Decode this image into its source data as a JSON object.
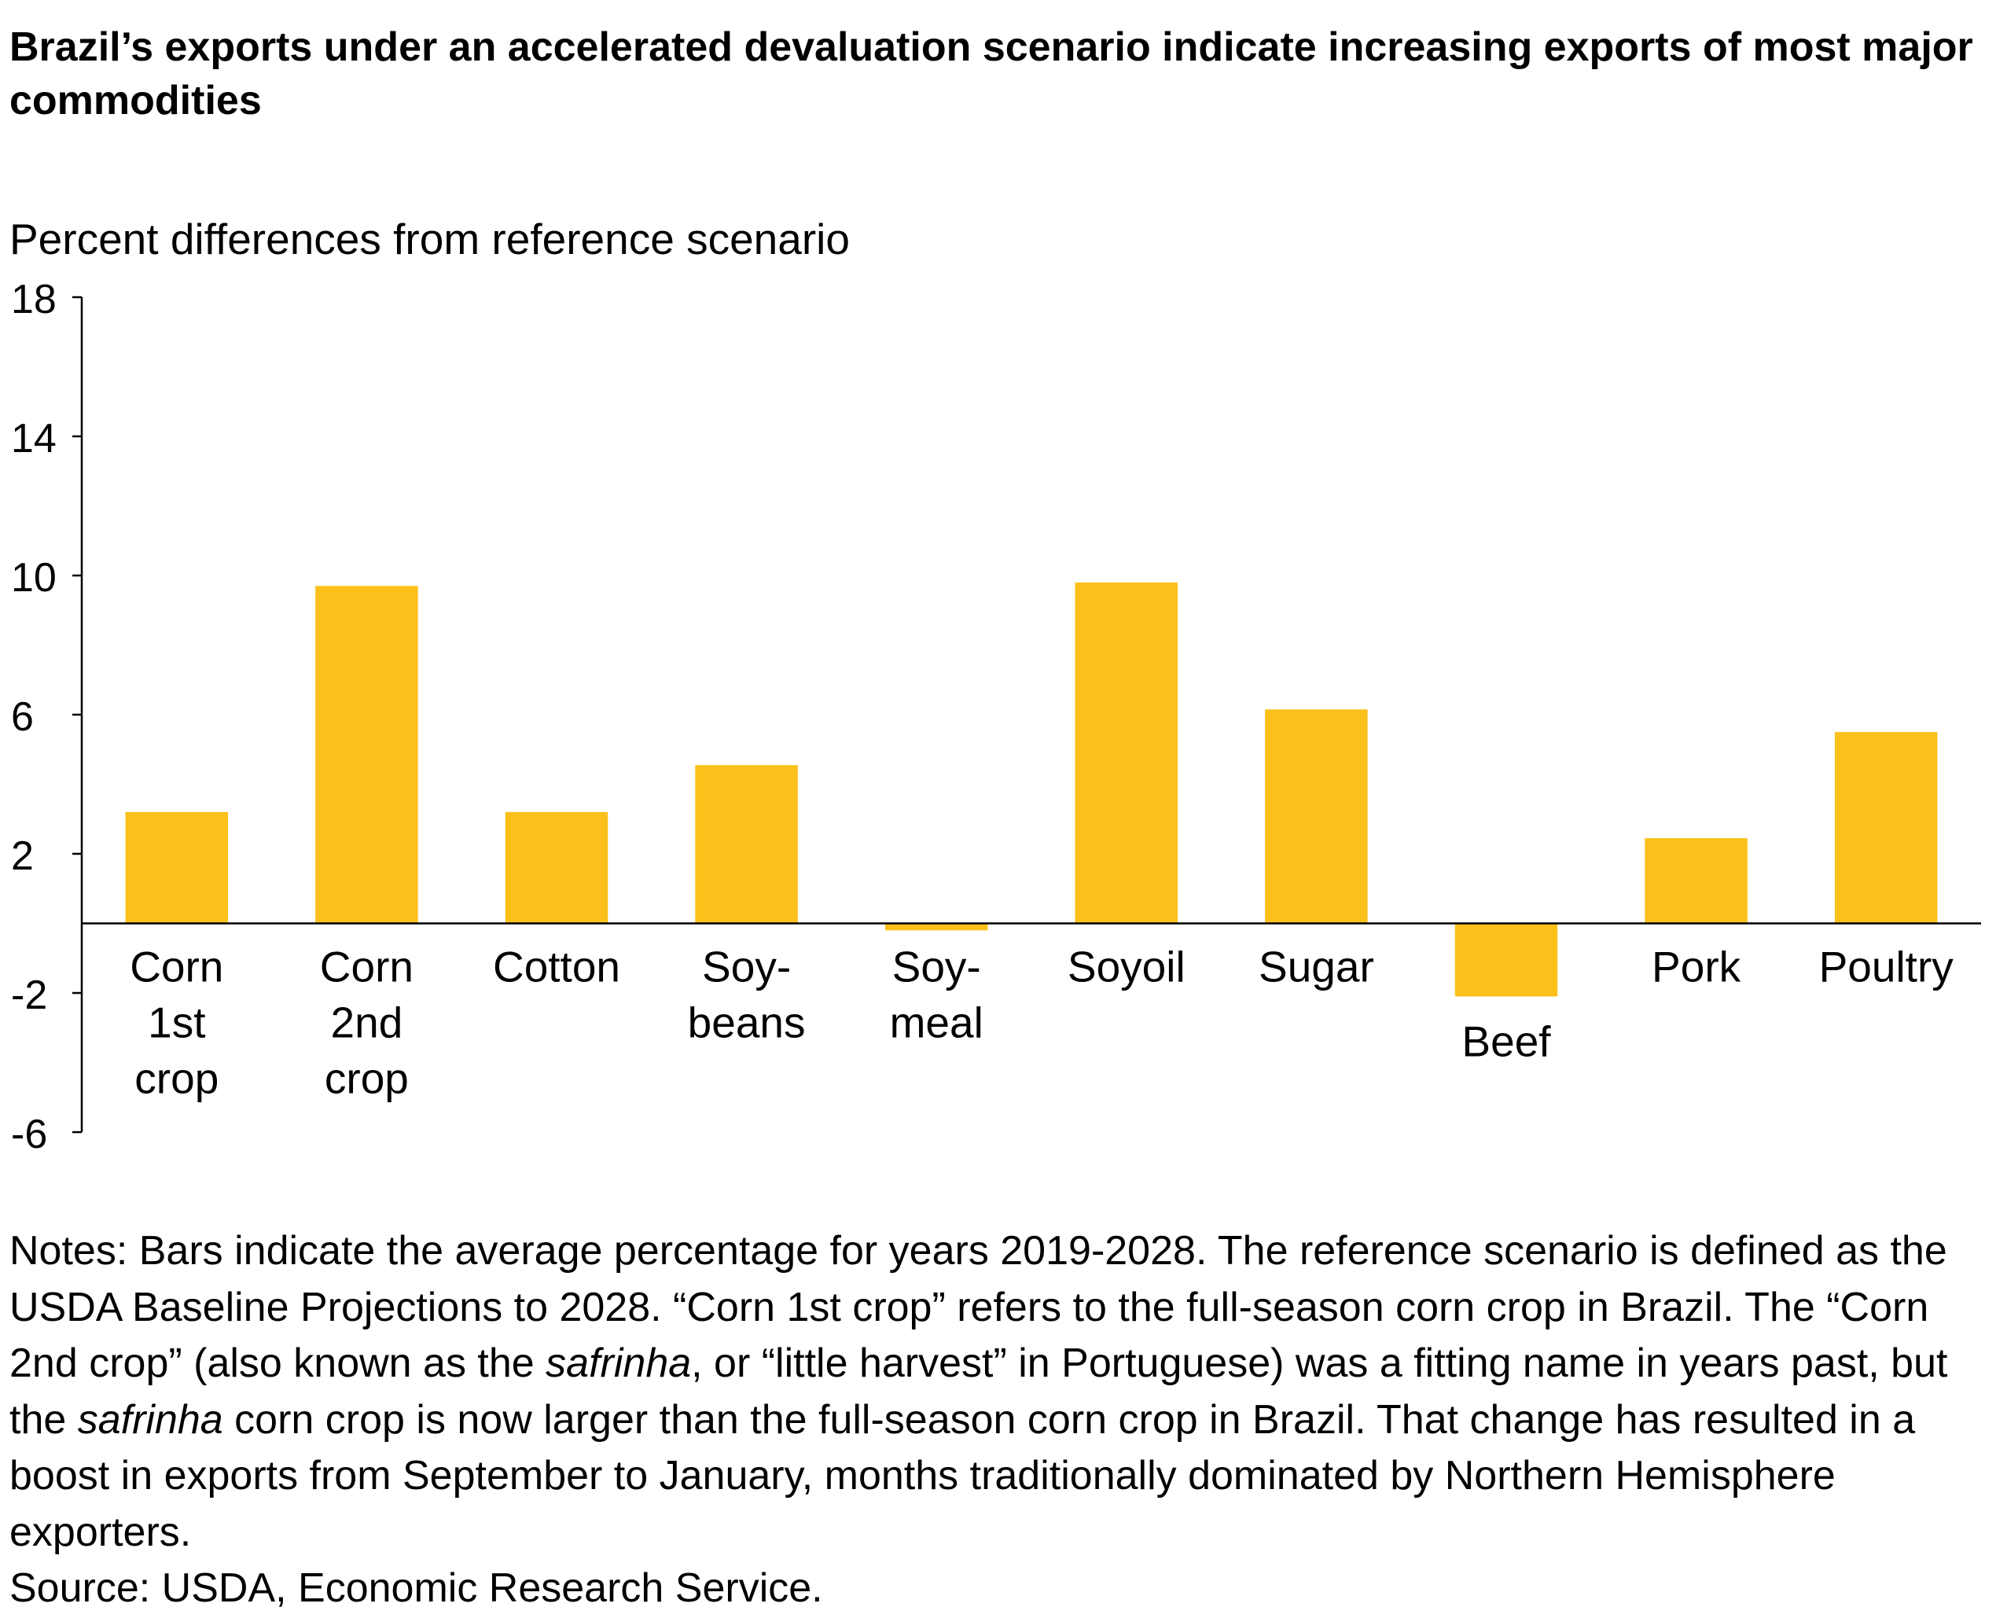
{
  "title": "Brazil’s exports under an accelerated devaluation scenario indicate increasing exports of most major commodities",
  "chart_data": {
    "type": "bar",
    "ylabel": "Percent differences from reference scenario",
    "ylim": [
      -6,
      18
    ],
    "yticks": [
      -6,
      -2,
      2,
      6,
      10,
      14,
      18
    ],
    "categories": [
      "Corn\n1st\ncrop",
      "Corn\n2nd\ncrop",
      "Cotton",
      "Soy-\nbeans",
      "Soy-\nmeal",
      "Soyoil",
      "Sugar",
      "Beef",
      "Pork",
      "Poultry"
    ],
    "values": [
      3.2,
      9.7,
      3.2,
      4.55,
      -0.2,
      9.8,
      6.15,
      -2.1,
      2.45,
      5.5
    ],
    "bar_color": "#FBC01A",
    "grid": false,
    "legend": "none"
  },
  "notes": {
    "p1": "Notes: Bars indicate the average percentage for years 2019-2028. The reference scenario is defined as the USDA Baseline Projections to 2028. “Corn 1st crop” refers to the full-season corn crop in Brazil. The “Corn 2nd crop” (also known as the ",
    "italic1": "safrinha",
    "p2": ", or “little harvest” in Portuguese) was a fitting name in years past, but the ",
    "italic2": "safrinha",
    "p3": " corn crop is now larger than the full-season corn crop in Brazil. That change has resulted in a boost in exports from September to January, months traditionally dominated by Northern Hemisphere exporters.",
    "source": "Source: USDA, Economic Research Service."
  }
}
